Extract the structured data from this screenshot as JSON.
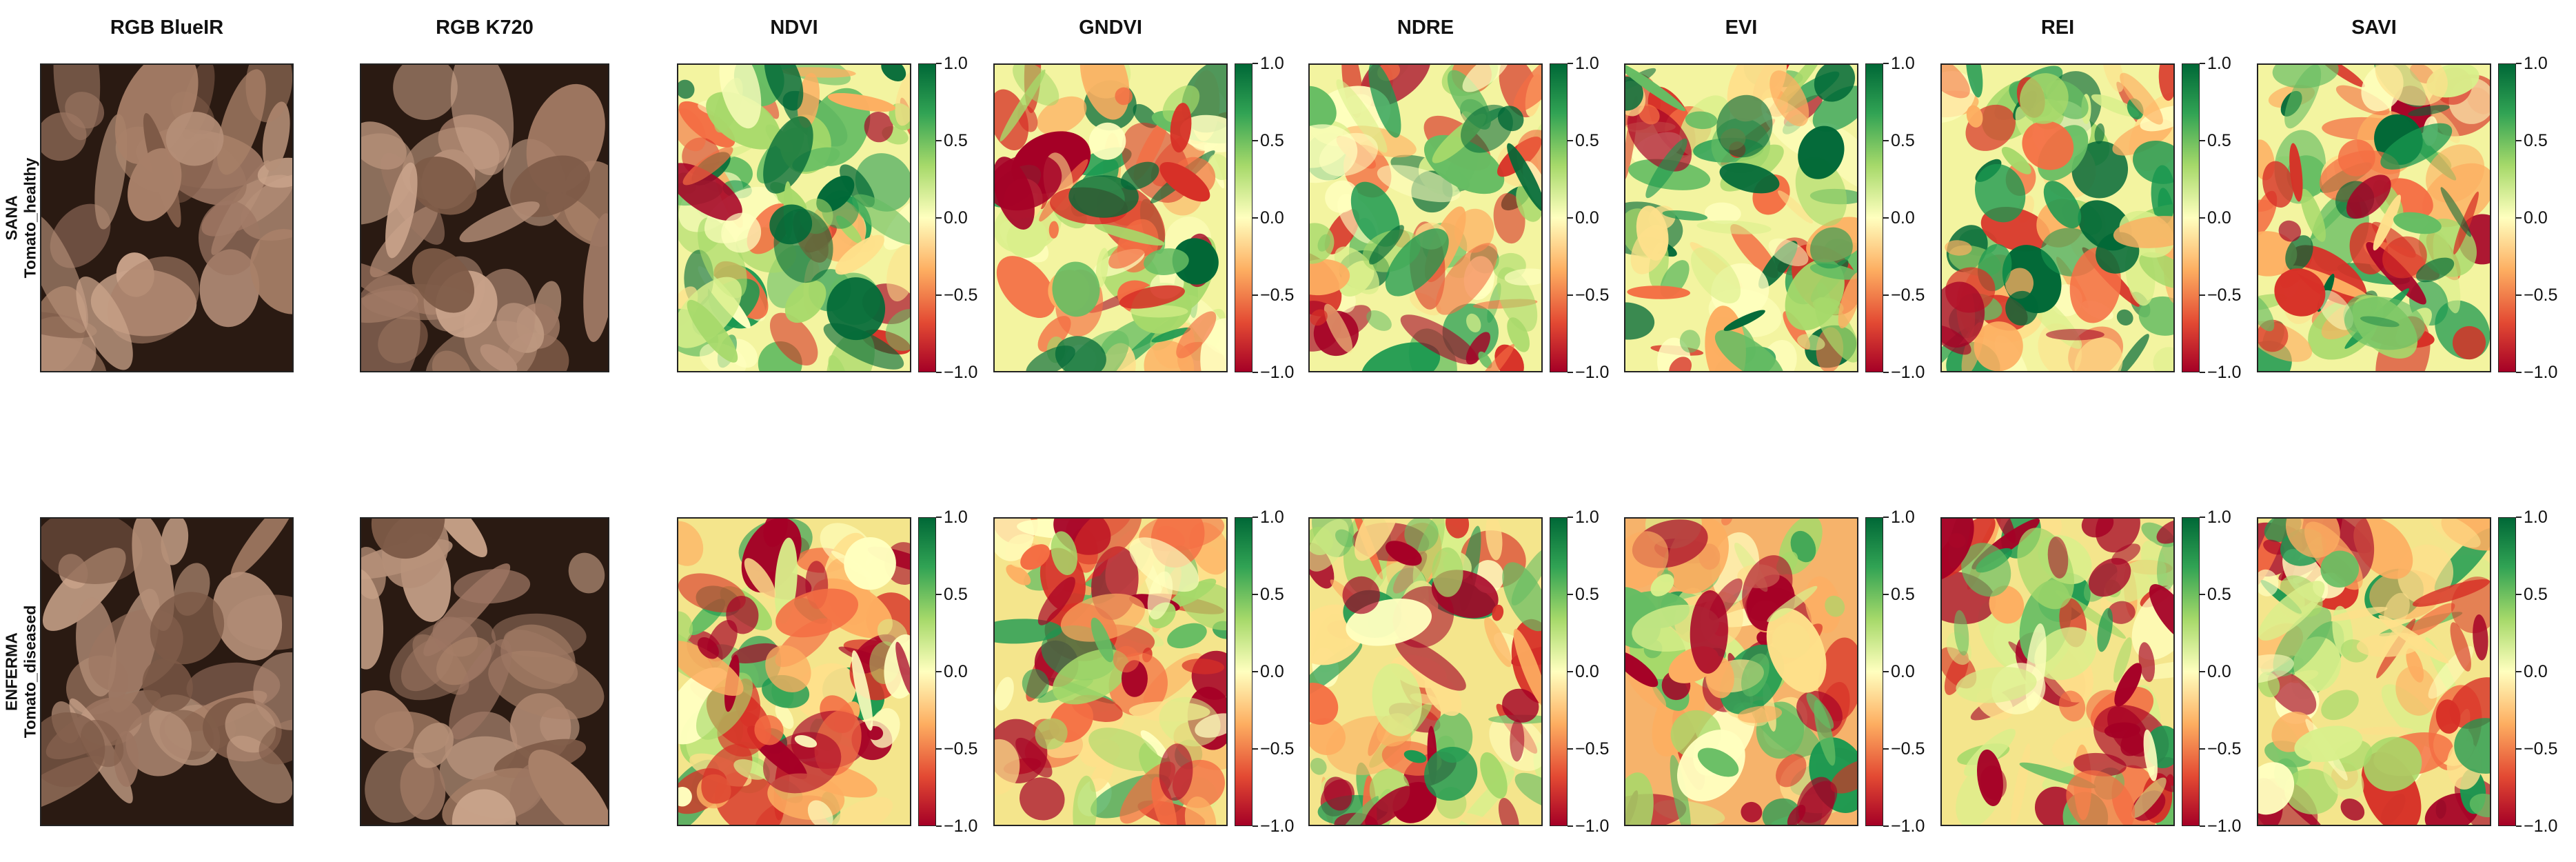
{
  "column_titles": [
    "RGB BlueIR",
    "RGB K720",
    "NDVI",
    "GNDVI",
    "NDRE",
    "EVI",
    "REI",
    "SAVI"
  ],
  "row_labels": [
    {
      "line1": "SANA",
      "line2": "Tomato_healthy"
    },
    {
      "line1": "ENFERMA",
      "line2": "Tomato_diseased"
    }
  ],
  "colorbar_ticks": [
    "1.0",
    "0.5",
    "0.0",
    "−0.5",
    "−1.0"
  ],
  "colormap": {
    "name": "RdYlGn",
    "high": "#006837",
    "mid": "#ffffbf",
    "low": "#a50026"
  },
  "photo_tint": {
    "background": "#2a1a12",
    "leaf": "#b58f78"
  }
}
